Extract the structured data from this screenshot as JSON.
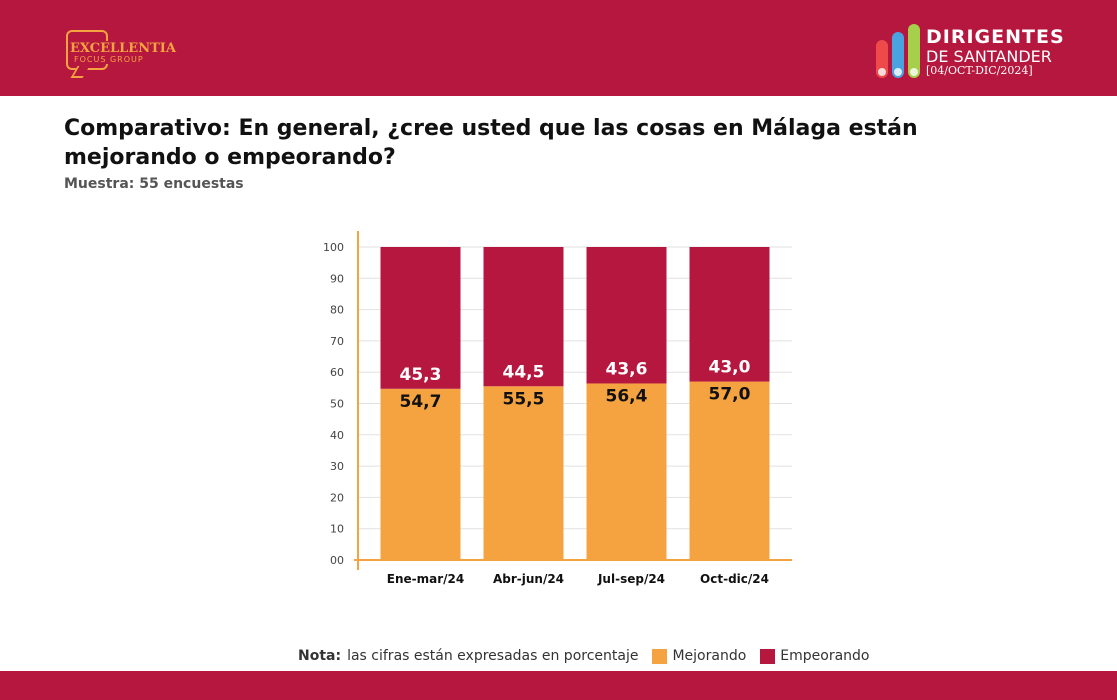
{
  "header": {
    "left_logo": {
      "name": "EXCELLENTIA",
      "sub": "FOCUS GROUP"
    },
    "right_logo": {
      "line1": "DIRIGENTES",
      "line2": "DE SANTANDER",
      "line3": "[04/OCT-DIC/2024]"
    },
    "colors": {
      "brand": "#b5173f",
      "logo_accent": "#f5a340",
      "pencils": [
        "#ef4a4a",
        "#4aa3df",
        "#a6d04b"
      ]
    }
  },
  "title": "Comparativo: En general, ¿cree usted que las cosas en Málaga están mejorando o empeorando?",
  "subtitle": "Muestra: 55 encuestas",
  "chart_data": {
    "type": "bar",
    "stacked": true,
    "categories": [
      "Ene-mar/24",
      "Abr-jun/24",
      "Jul-sep/24",
      "Oct-dic/24"
    ],
    "series": [
      {
        "name": "Mejorando",
        "color": "#f5a340",
        "values": [
          54.7,
          55.5,
          56.4,
          57.0
        ],
        "labels": [
          "54,7",
          "55,5",
          "56,4",
          "57,0"
        ]
      },
      {
        "name": "Empeorando",
        "color": "#b5173f",
        "values": [
          45.3,
          44.5,
          43.6,
          43.0
        ],
        "labels": [
          "45,3",
          "44,5",
          "43,6",
          "43,0"
        ]
      }
    ],
    "yticks": [
      "00",
      "10",
      "20",
      "30",
      "40",
      "50",
      "60",
      "70",
      "80",
      "90",
      "100"
    ],
    "ylim": [
      0,
      100
    ],
    "grid": true,
    "legend_position": "bottom"
  },
  "footer_note": {
    "label": "Nota:",
    "text": "las cifras están expresadas en porcentaje"
  }
}
